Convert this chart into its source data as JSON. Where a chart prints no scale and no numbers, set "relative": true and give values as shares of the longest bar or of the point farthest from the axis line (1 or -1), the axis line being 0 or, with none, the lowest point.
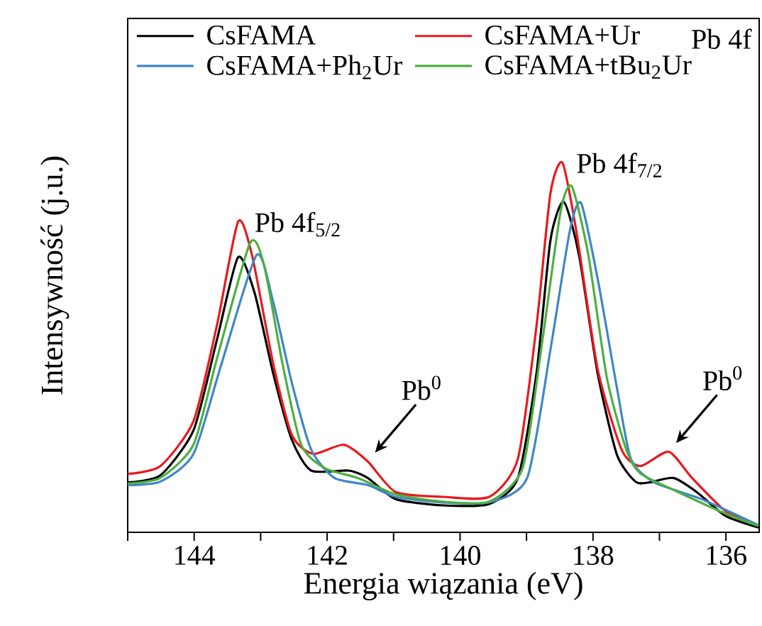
{
  "chart_data": {
    "type": "line",
    "relative": true,
    "xlabel": "Energia wiązania (eV)",
    "ylabel": "Intensywność (j.u.)",
    "xlim": [
      145,
      135.5
    ],
    "xticks": [
      {
        "value": 145,
        "label": null
      },
      144,
      {
        "value": 143,
        "label": null
      },
      142,
      {
        "value": 141,
        "label": null
      },
      140,
      {
        "value": 139,
        "label": null
      },
      138,
      {
        "value": 137,
        "label": null
      },
      136
    ],
    "legend": "top left",
    "grid": false,
    "marker": "none",
    "line_style": "solid",
    "annotations": [
      "Pb 4f",
      {
        "text": "Pb 4f$_{5/2}$",
        "x": 143.16,
        "y": 0.78
      },
      {
        "text": "Pb 4f$_{7/2}$",
        "x": 138.32,
        "y": 0.94
      },
      {
        "text": "Pb$^{0}$",
        "x": 141.39,
        "y": 0.192
      },
      {
        "text": "Pb$^{0}$",
        "x": 136.86,
        "y": 0.218
      }
    ],
    "series": [
      {
        "name": "CsFAMA",
        "color": "#000000",
        "x": [
          145.0,
          144.51,
          144.01,
          143.66,
          143.34,
          143.09,
          142.81,
          142.53,
          142.24,
          141.68,
          141.39,
          140.97,
          140.26,
          139.56,
          139.13,
          138.85,
          138.64,
          138.44,
          138.21,
          137.93,
          137.64,
          137.36,
          137.15,
          136.79,
          136.44,
          136.01,
          135.51
        ],
        "values": [
          0.135,
          0.154,
          0.276,
          0.519,
          0.744,
          0.647,
          0.429,
          0.25,
          0.167,
          0.167,
          0.147,
          0.09,
          0.073,
          0.077,
          0.147,
          0.43,
          0.79,
          0.894,
          0.75,
          0.43,
          0.21,
          0.137,
          0.135,
          0.147,
          0.109,
          0.045,
          0.013
        ]
      },
      {
        "name": "CsFAMA+Ur",
        "color": "#e8191c",
        "x": [
          145.0,
          144.51,
          144.01,
          143.66,
          143.34,
          143.13,
          142.81,
          142.53,
          142.21,
          141.75,
          141.39,
          140.97,
          140.26,
          139.56,
          139.13,
          138.85,
          138.64,
          138.46,
          138.25,
          137.93,
          137.57,
          137.29,
          136.86,
          136.51,
          136.01,
          135.51
        ],
        "values": [
          0.158,
          0.179,
          0.301,
          0.558,
          0.84,
          0.75,
          0.455,
          0.263,
          0.212,
          0.237,
          0.192,
          0.109,
          0.096,
          0.096,
          0.199,
          0.558,
          0.917,
          1.0,
          0.814,
          0.442,
          0.224,
          0.179,
          0.218,
          0.147,
          0.058,
          0.019
        ]
      },
      {
        "name": "CsFAMA+Ph$_{2}$Ur",
        "color": "#3f86c8",
        "x": [
          145.0,
          144.51,
          144.01,
          143.59,
          143.06,
          142.81,
          142.53,
          142.24,
          141.89,
          141.39,
          140.97,
          140.26,
          139.56,
          138.99,
          138.64,
          138.35,
          138.18,
          137.93,
          137.64,
          137.43,
          137.08,
          136.37,
          135.51
        ],
        "values": [
          0.128,
          0.137,
          0.212,
          0.455,
          0.75,
          0.622,
          0.404,
          0.224,
          0.147,
          0.128,
          0.096,
          0.081,
          0.081,
          0.147,
          0.494,
          0.814,
          0.891,
          0.686,
          0.391,
          0.199,
          0.135,
          0.09,
          0.019
        ]
      },
      {
        "name": "CsFAMA+tBu$_{2}$Ur",
        "color": "#4caf3f",
        "x": [
          145.0,
          144.51,
          144.01,
          143.66,
          143.16,
          142.95,
          142.67,
          142.39,
          142.03,
          141.54,
          140.97,
          140.26,
          139.56,
          139.06,
          138.78,
          138.49,
          138.32,
          138.07,
          137.79,
          137.5,
          137.29,
          136.72,
          136.01,
          135.51
        ],
        "values": [
          0.132,
          0.147,
          0.237,
          0.468,
          0.782,
          0.724,
          0.455,
          0.237,
          0.173,
          0.147,
          0.103,
          0.083,
          0.083,
          0.173,
          0.494,
          0.865,
          0.936,
          0.75,
          0.417,
          0.224,
          0.16,
          0.109,
          0.051,
          0.017
        ]
      }
    ]
  }
}
